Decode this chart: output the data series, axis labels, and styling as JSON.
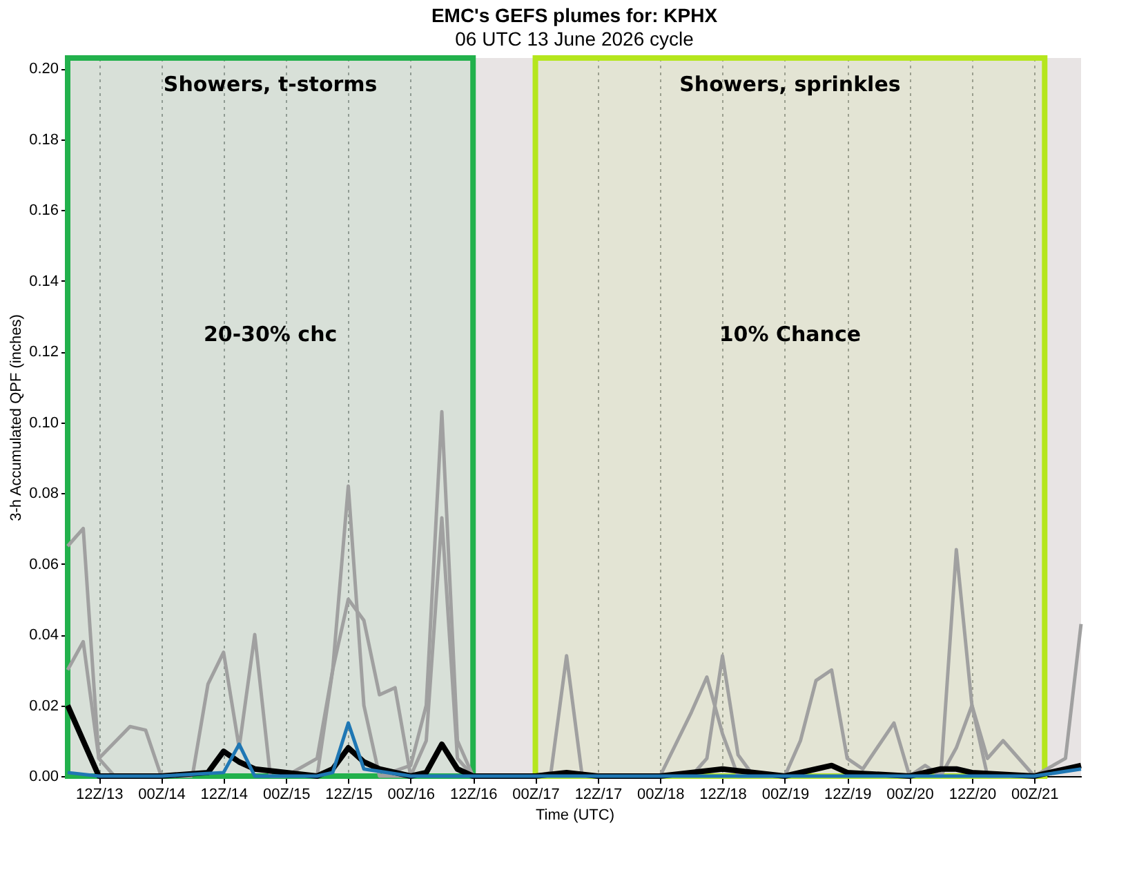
{
  "chart_data": {
    "type": "line",
    "title": "EMC's GEFS plumes for: KPHX",
    "subtitle": "06 UTC 13 June 2026 cycle",
    "xlabel": "Time (UTC)",
    "ylabel": "3-h Accumulated QPF (inches)",
    "xlim": [
      "2026-06-13T06:00",
      "2026-06-21T09:00"
    ],
    "ylim": [
      0,
      0.203
    ],
    "xticks": [
      {
        "value": "2026-06-13T12:00",
        "label": "12Z/13"
      },
      {
        "value": "2026-06-14T00:00",
        "label": "00Z/14"
      },
      {
        "value": "2026-06-14T12:00",
        "label": "12Z/14"
      },
      {
        "value": "2026-06-15T00:00",
        "label": "00Z/15"
      },
      {
        "value": "2026-06-15T12:00",
        "label": "12Z/15"
      },
      {
        "value": "2026-06-16T00:00",
        "label": "00Z/16"
      },
      {
        "value": "2026-06-16T12:00",
        "label": "12Z/16"
      },
      {
        "value": "2026-06-17T00:00",
        "label": "00Z/17"
      },
      {
        "value": "2026-06-17T12:00",
        "label": "12Z/17"
      },
      {
        "value": "2026-06-18T00:00",
        "label": "00Z/18"
      },
      {
        "value": "2026-06-18T12:00",
        "label": "12Z/18"
      },
      {
        "value": "2026-06-19T00:00",
        "label": "00Z/19"
      },
      {
        "value": "2026-06-19T12:00",
        "label": "12Z/19"
      },
      {
        "value": "2026-06-20T00:00",
        "label": "00Z/20"
      },
      {
        "value": "2026-06-20T12:00",
        "label": "12Z/20"
      },
      {
        "value": "2026-06-21T00:00",
        "label": "00Z/21"
      }
    ],
    "yticks": [
      {
        "value": 0,
        "label": "0.00"
      },
      {
        "value": 0.02,
        "label": "0.02"
      },
      {
        "value": 0.04,
        "label": "0.04"
      },
      {
        "value": 0.06,
        "label": "0.06"
      },
      {
        "value": 0.08,
        "label": "0.08"
      },
      {
        "value": 0.1,
        "label": "0.10"
      },
      {
        "value": 0.12,
        "label": "0.12"
      },
      {
        "value": 0.14,
        "label": "0.14"
      },
      {
        "value": 0.16,
        "label": "0.16"
      },
      {
        "value": 0.18,
        "label": "0.18"
      },
      {
        "value": 0.2,
        "label": "0.20"
      }
    ],
    "grid": "x",
    "series": [
      {
        "color": "#a0a0a0",
        "x": [
          "2026-06-13T06:00",
          "2026-06-13T09:00",
          "2026-06-13T12:00",
          "2026-06-13T15:00",
          "2026-06-13T21:00",
          "2026-06-14T00:00"
        ],
        "values": [
          0.065,
          0.07,
          0.005,
          0,
          0,
          0
        ]
      },
      {
        "color": "#a0a0a0",
        "x": [
          "2026-06-13T06:00",
          "2026-06-13T09:00",
          "2026-06-13T12:00",
          "2026-06-13T18:00",
          "2026-06-13T21:00",
          "2026-06-14T00:00",
          "2026-06-14T06:00"
        ],
        "values": [
          0.03,
          0.038,
          0.005,
          0.014,
          0.013,
          0,
          0
        ]
      },
      {
        "color": "#a0a0a0",
        "x": [
          "2026-06-15T00:00",
          "2026-06-15T06:00",
          "2026-06-15T09:00",
          "2026-06-15T12:00",
          "2026-06-15T15:00",
          "2026-06-15T18:00",
          "2026-06-16T00:00"
        ],
        "values": [
          0,
          0.005,
          0.03,
          0.082,
          0.02,
          0,
          0
        ]
      },
      {
        "color": "#a0a0a0",
        "x": [
          "2026-06-15T18:00",
          "2026-06-16T00:00",
          "2026-06-16T03:00",
          "2026-06-16T06:00",
          "2026-06-16T09:00",
          "2026-06-16T12:00",
          "2026-06-16T18:00"
        ],
        "values": [
          0,
          0.003,
          0.02,
          0.103,
          0.01,
          0,
          0
        ]
      },
      {
        "color": "#a0a0a0",
        "x": [
          "2026-06-16T00:00",
          "2026-06-16T03:00",
          "2026-06-16T06:00",
          "2026-06-16T09:00",
          "2026-06-16T12:00"
        ],
        "values": [
          0,
          0.01,
          0.073,
          0.005,
          0
        ]
      },
      {
        "color": "#a0a0a0",
        "x": [
          "2026-06-14T06:00",
          "2026-06-14T09:00",
          "2026-06-14T12:00",
          "2026-06-14T15:00",
          "2026-06-14T18:00",
          "2026-06-14T21:00",
          "2026-06-15T00:00"
        ],
        "values": [
          0,
          0.026,
          0.035,
          0.008,
          0.04,
          0,
          0
        ]
      },
      {
        "color": "#a0a0a0",
        "x": [
          "2026-06-15T06:00",
          "2026-06-15T09:00",
          "2026-06-15T12:00",
          "2026-06-15T15:00",
          "2026-06-15T18:00",
          "2026-06-15T21:00",
          "2026-06-16T00:00"
        ],
        "values": [
          0,
          0.03,
          0.05,
          0.044,
          0.023,
          0.025,
          0
        ]
      },
      {
        "color": "#a0a0a0",
        "x": [
          "2026-06-17T00:00",
          "2026-06-17T03:00",
          "2026-06-17T06:00",
          "2026-06-17T09:00",
          "2026-06-17T12:00"
        ],
        "values": [
          0,
          0.001,
          0.034,
          0,
          0
        ]
      },
      {
        "color": "#a0a0a0",
        "x": [
          "2026-06-18T00:00",
          "2026-06-18T06:00",
          "2026-06-18T09:00",
          "2026-06-18T12:00",
          "2026-06-18T15:00",
          "2026-06-18T18:00",
          "2026-06-19T00:00"
        ],
        "values": [
          0,
          0.018,
          0.028,
          0.012,
          0,
          0,
          0
        ]
      },
      {
        "color": "#a0a0a0",
        "x": [
          "2026-06-18T06:00",
          "2026-06-18T09:00",
          "2026-06-18T12:00",
          "2026-06-18T15:00",
          "2026-06-18T18:00"
        ],
        "values": [
          0,
          0.005,
          0.034,
          0.006,
          0
        ]
      },
      {
        "color": "#a0a0a0",
        "x": [
          "2026-06-19T00:00",
          "2026-06-19T03:00",
          "2026-06-19T06:00",
          "2026-06-19T09:00",
          "2026-06-19T12:00",
          "2026-06-19T15:00",
          "2026-06-19T21:00",
          "2026-06-20T00:00"
        ],
        "values": [
          0,
          0.01,
          0.027,
          0.03,
          0.005,
          0.002,
          0.015,
          0
        ]
      },
      {
        "color": "#a0a0a0",
        "x": [
          "2026-06-20T00:00",
          "2026-06-20T03:00",
          "2026-06-20T06:00",
          "2026-06-20T09:00",
          "2026-06-20T12:00",
          "2026-06-20T15:00",
          "2026-06-20T18:00",
          "2026-06-21T00:00"
        ],
        "values": [
          0,
          0.003,
          0,
          0.064,
          0.02,
          0,
          0,
          0
        ]
      },
      {
        "color": "#a0a0a0",
        "x": [
          "2026-06-20T06:00",
          "2026-06-20T09:00",
          "2026-06-20T12:00",
          "2026-06-20T15:00",
          "2026-06-20T18:00",
          "2026-06-21T00:00"
        ],
        "values": [
          0,
          0.008,
          0.02,
          0.005,
          0.01,
          0
        ]
      },
      {
        "color": "#a0a0a0",
        "x": [
          "2026-06-21T00:00",
          "2026-06-21T06:00",
          "2026-06-21T09:00"
        ],
        "values": [
          0,
          0.005,
          0.043
        ]
      },
      {
        "color": "#000000",
        "x": [
          "2026-06-13T06:00",
          "2026-06-13T09:00",
          "2026-06-13T12:00",
          "2026-06-14T00:00",
          "2026-06-14T09:00",
          "2026-06-14T12:00",
          "2026-06-14T15:00",
          "2026-06-14T18:00",
          "2026-06-15T06:00",
          "2026-06-15T09:00",
          "2026-06-15T12:00",
          "2026-06-15T15:00",
          "2026-06-15T18:00",
          "2026-06-16T00:00",
          "2026-06-16T03:00",
          "2026-06-16T06:00",
          "2026-06-16T09:00",
          "2026-06-16T12:00",
          "2026-06-17T00:00",
          "2026-06-17T06:00",
          "2026-06-17T12:00",
          "2026-06-18T00:00",
          "2026-06-18T12:00",
          "2026-06-19T00:00",
          "2026-06-19T06:00",
          "2026-06-19T09:00",
          "2026-06-19T12:00",
          "2026-06-20T00:00",
          "2026-06-20T06:00",
          "2026-06-20T09:00",
          "2026-06-20T12:00",
          "2026-06-21T00:00",
          "2026-06-21T09:00"
        ],
        "values": [
          0.02,
          0.01,
          0,
          0,
          0.001,
          0.007,
          0.004,
          0.002,
          0,
          0.002,
          0.008,
          0.004,
          0.002,
          0,
          0.001,
          0.009,
          0.002,
          0,
          0,
          0.001,
          0,
          0,
          0.002,
          0,
          0.002,
          0.003,
          0.001,
          0,
          0.002,
          0.002,
          0.001,
          0,
          0.003
        ]
      },
      {
        "color": "#1f77b4",
        "x": [
          "2026-06-13T06:00",
          "2026-06-13T12:00",
          "2026-06-14T00:00",
          "2026-06-14T12:00",
          "2026-06-14T15:00",
          "2026-06-14T18:00",
          "2026-06-14T21:00",
          "2026-06-15T06:00",
          "2026-06-15T09:00",
          "2026-06-15T12:00",
          "2026-06-15T15:00",
          "2026-06-16T00:00",
          "2026-06-17T00:00",
          "2026-06-21T00:00",
          "2026-06-21T09:00"
        ],
        "values": [
          0.001,
          0,
          0,
          0.001,
          0.009,
          0,
          0,
          0,
          0.001,
          0.015,
          0.002,
          0,
          0,
          0,
          0.002
        ]
      }
    ],
    "bands": [
      {
        "axis": "x",
        "from": "2026-06-13T06:00",
        "to": "2026-06-16T12:00",
        "label": "Showers, t-storms",
        "color": "#22b14c"
      },
      {
        "axis": "x",
        "from": "2026-06-17T00:00",
        "to": "2026-06-21T02:00",
        "label": "Showers, sprinkles",
        "color": "#b5e61d"
      }
    ],
    "annotations": [
      "20-30% chc",
      "10% Chance"
    ]
  }
}
